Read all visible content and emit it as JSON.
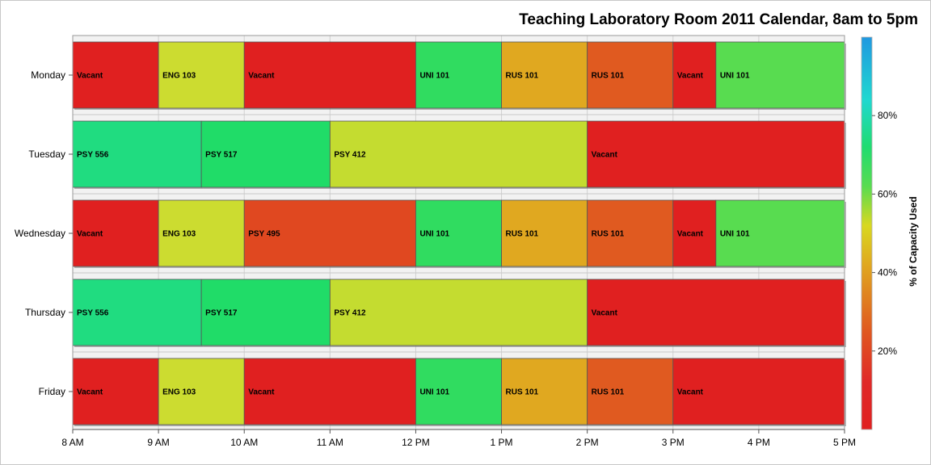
{
  "chart_data": {
    "type": "bar",
    "orientation": "horizontal",
    "title": "Teaching Laboratory Room 2011 Calendar, 8am to 5pm",
    "days": [
      "Monday",
      "Tuesday",
      "Wednesday",
      "Thursday",
      "Friday"
    ],
    "x_ticks": [
      {
        "hour": 8,
        "label": "8 AM"
      },
      {
        "hour": 9,
        "label": "9 AM"
      },
      {
        "hour": 10,
        "label": "10 AM"
      },
      {
        "hour": 11,
        "label": "11 AM"
      },
      {
        "hour": 12,
        "label": "12 PM"
      },
      {
        "hour": 13,
        "label": "1 PM"
      },
      {
        "hour": 14,
        "label": "2 PM"
      },
      {
        "hour": 15,
        "label": "3 PM"
      },
      {
        "hour": 16,
        "label": "4 PM"
      },
      {
        "hour": 17,
        "label": "5 PM"
      }
    ],
    "xlim": [
      8,
      17
    ],
    "grid": true,
    "color_scale": {
      "title": "% of Capacity Used",
      "range": [
        0,
        100
      ],
      "ticks": [
        {
          "value": 20,
          "label": "20%"
        },
        {
          "value": 40,
          "label": "40%"
        },
        {
          "value": 60,
          "label": "60%"
        },
        {
          "value": 80,
          "label": "80%"
        }
      ],
      "placement": "right"
    },
    "bookings": [
      {
        "day": "Monday",
        "start": 8,
        "end": 9,
        "label": "Vacant",
        "capacity_pct": 0,
        "color": "#e02020"
      },
      {
        "day": "Monday",
        "start": 9,
        "end": 10,
        "label": "ENG 103",
        "capacity_pct": 52,
        "color": "#ccdc30"
      },
      {
        "day": "Monday",
        "start": 10,
        "end": 12,
        "label": "Vacant",
        "capacity_pct": 0,
        "color": "#e02020"
      },
      {
        "day": "Monday",
        "start": 12,
        "end": 13,
        "label": "UNI 101",
        "capacity_pct": 66,
        "color": "#30dc60"
      },
      {
        "day": "Monday",
        "start": 13,
        "end": 14,
        "label": "RUS 101",
        "capacity_pct": 40,
        "color": "#e0a820"
      },
      {
        "day": "Monday",
        "start": 14,
        "end": 15,
        "label": "RUS 101",
        "capacity_pct": 25,
        "color": "#e05a20"
      },
      {
        "day": "Monday",
        "start": 15,
        "end": 15.5,
        "label": "Vacant",
        "capacity_pct": 0,
        "color": "#e02020"
      },
      {
        "day": "Monday",
        "start": 15.5,
        "end": 17,
        "label": "UNI 101",
        "capacity_pct": 62,
        "color": "#58dc50"
      },
      {
        "day": "Tuesday",
        "start": 8,
        "end": 9.5,
        "label": "PSY 556",
        "capacity_pct": 72,
        "color": "#20dc80"
      },
      {
        "day": "Tuesday",
        "start": 9.5,
        "end": 11,
        "label": "PSY 517",
        "capacity_pct": 68,
        "color": "#20dc68"
      },
      {
        "day": "Tuesday",
        "start": 11,
        "end": 14,
        "label": "PSY 412",
        "capacity_pct": 54,
        "color": "#c4dc30"
      },
      {
        "day": "Tuesday",
        "start": 14,
        "end": 17,
        "label": "Vacant",
        "capacity_pct": 0,
        "color": "#e02020"
      },
      {
        "day": "Wednesday",
        "start": 8,
        "end": 9,
        "label": "Vacant",
        "capacity_pct": 0,
        "color": "#e02020"
      },
      {
        "day": "Wednesday",
        "start": 9,
        "end": 10,
        "label": "ENG 103",
        "capacity_pct": 52,
        "color": "#ccdc30"
      },
      {
        "day": "Wednesday",
        "start": 10,
        "end": 12,
        "label": "PSY 495",
        "capacity_pct": 20,
        "color": "#e04820"
      },
      {
        "day": "Wednesday",
        "start": 12,
        "end": 13,
        "label": "UNI 101",
        "capacity_pct": 66,
        "color": "#30dc60"
      },
      {
        "day": "Wednesday",
        "start": 13,
        "end": 14,
        "label": "RUS 101",
        "capacity_pct": 40,
        "color": "#e0a820"
      },
      {
        "day": "Wednesday",
        "start": 14,
        "end": 15,
        "label": "RUS 101",
        "capacity_pct": 25,
        "color": "#e05a20"
      },
      {
        "day": "Wednesday",
        "start": 15,
        "end": 15.5,
        "label": "Vacant",
        "capacity_pct": 0,
        "color": "#e02020"
      },
      {
        "day": "Wednesday",
        "start": 15.5,
        "end": 17,
        "label": "UNI 101",
        "capacity_pct": 62,
        "color": "#58dc50"
      },
      {
        "day": "Thursday",
        "start": 8,
        "end": 9.5,
        "label": "PSY 556",
        "capacity_pct": 72,
        "color": "#20dc80"
      },
      {
        "day": "Thursday",
        "start": 9.5,
        "end": 11,
        "label": "PSY 517",
        "capacity_pct": 68,
        "color": "#20dc68"
      },
      {
        "day": "Thursday",
        "start": 11,
        "end": 14,
        "label": "PSY 412",
        "capacity_pct": 54,
        "color": "#c4dc30"
      },
      {
        "day": "Thursday",
        "start": 14,
        "end": 17,
        "label": "Vacant",
        "capacity_pct": 0,
        "color": "#e02020"
      },
      {
        "day": "Friday",
        "start": 8,
        "end": 9,
        "label": "Vacant",
        "capacity_pct": 0,
        "color": "#e02020"
      },
      {
        "day": "Friday",
        "start": 9,
        "end": 10,
        "label": "ENG 103",
        "capacity_pct": 52,
        "color": "#ccdc30"
      },
      {
        "day": "Friday",
        "start": 10,
        "end": 12,
        "label": "Vacant",
        "capacity_pct": 0,
        "color": "#e02020"
      },
      {
        "day": "Friday",
        "start": 12,
        "end": 13,
        "label": "UNI 101",
        "capacity_pct": 66,
        "color": "#30dc60"
      },
      {
        "day": "Friday",
        "start": 13,
        "end": 14,
        "label": "RUS 101",
        "capacity_pct": 40,
        "color": "#e0a820"
      },
      {
        "day": "Friday",
        "start": 14,
        "end": 15,
        "label": "RUS 101",
        "capacity_pct": 25,
        "color": "#e05a20"
      },
      {
        "day": "Friday",
        "start": 15,
        "end": 17,
        "label": "Vacant",
        "capacity_pct": 0,
        "color": "#e02020"
      }
    ]
  }
}
